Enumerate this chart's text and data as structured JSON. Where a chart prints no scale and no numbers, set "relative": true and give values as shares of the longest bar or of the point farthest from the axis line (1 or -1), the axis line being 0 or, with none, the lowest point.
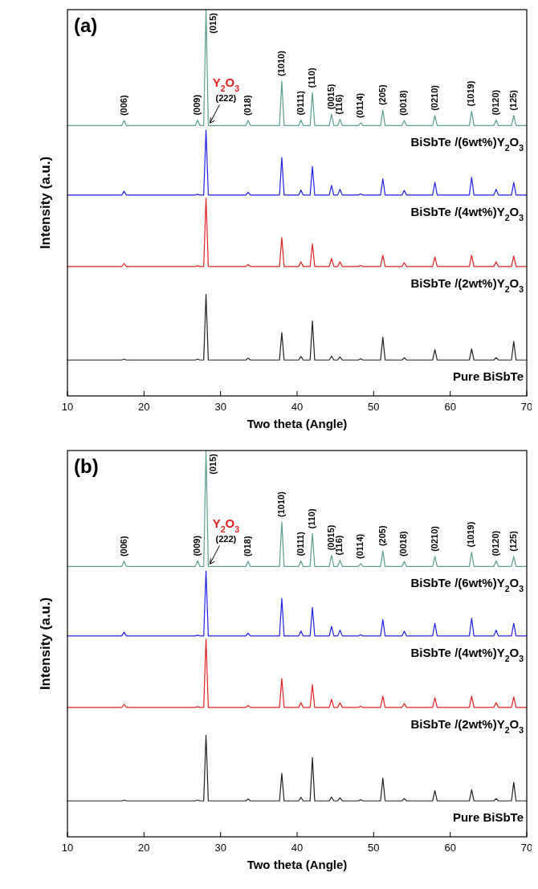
{
  "chart_data": [
    {
      "type": "line",
      "title": "(a)",
      "xlabel": "Two theta (Angle)",
      "ylabel": "Intensity (a.u.)",
      "relative": true,
      "xlim": [
        10,
        70
      ],
      "xticks": [
        10,
        20,
        30,
        40,
        50,
        60,
        70
      ],
      "tick_labels": "x",
      "x": [
        10,
        17.1,
        17.4,
        17.7,
        26.7,
        27.0,
        27.3,
        27.8,
        28.1,
        28.4,
        33.3,
        33.6,
        33.9,
        37.7,
        38.0,
        38.3,
        40.2,
        40.5,
        40.8,
        41.7,
        42.0,
        42.3,
        44.2,
        44.5,
        44.8,
        45.3,
        45.6,
        45.9,
        48.0,
        48.3,
        48.6,
        50.9,
        51.2,
        51.5,
        53.7,
        54.0,
        54.3,
        57.7,
        58.0,
        58.3,
        62.5,
        62.8,
        63.1,
        65.7,
        66.0,
        66.3,
        68.0,
        68.3,
        68.6,
        70
      ],
      "series": [
        {
          "name": "BiSbTe /(6wt%)Y$_{2}$O$_{3}$",
          "color": "#5a9e90",
          "values": [
            0.7,
            0.7,
            0.713,
            0.7,
            0.7,
            0.714,
            0.7,
            0.7,
            1.0,
            0.7,
            0.7,
            0.713,
            0.7,
            0.7,
            0.815,
            0.7,
            0.7,
            0.714,
            0.7,
            0.7,
            0.785,
            0.7,
            0.7,
            0.729,
            0.7,
            0.7,
            0.716,
            0.7,
            0.7,
            0.707,
            0.7,
            0.7,
            0.74,
            0.7,
            0.7,
            0.713,
            0.7,
            0.7,
            0.726,
            0.7,
            0.7,
            0.737,
            0.7,
            0.7,
            0.714,
            0.7,
            0.7,
            0.726,
            0.7,
            0.7
          ]
        },
        {
          "name": "BiSbTe /(4wt%)Y$_{2}$O$_{3}$",
          "color": "#2020e8",
          "values": [
            0.52,
            0.52,
            0.53,
            0.52,
            0.52,
            0.522,
            0.52,
            0.52,
            0.688,
            0.52,
            0.52,
            0.527,
            0.52,
            0.52,
            0.617,
            0.52,
            0.52,
            0.533,
            0.52,
            0.52,
            0.594,
            0.52,
            0.52,
            0.545,
            0.52,
            0.52,
            0.535,
            0.52,
            0.52,
            0.523,
            0.52,
            0.52,
            0.562,
            0.52,
            0.52,
            0.532,
            0.52,
            0.52,
            0.553,
            0.52,
            0.52,
            0.566,
            0.52,
            0.52,
            0.535,
            0.52,
            0.52,
            0.553,
            0.52,
            0.52
          ]
        },
        {
          "name": "BiSbTe /(2wt%)Y$_{2}$O$_{3}$",
          "color": "#e02020",
          "values": [
            0.335,
            0.335,
            0.343,
            0.335,
            0.335,
            0.337,
            0.335,
            0.335,
            0.512,
            0.335,
            0.335,
            0.34,
            0.335,
            0.335,
            0.41,
            0.335,
            0.335,
            0.347,
            0.335,
            0.335,
            0.394,
            0.335,
            0.335,
            0.356,
            0.335,
            0.335,
            0.347,
            0.335,
            0.335,
            0.338,
            0.335,
            0.335,
            0.364,
            0.335,
            0.335,
            0.345,
            0.335,
            0.335,
            0.36,
            0.335,
            0.335,
            0.364,
            0.335,
            0.335,
            0.347,
            0.335,
            0.335,
            0.362,
            0.335,
            0.335
          ]
        },
        {
          "name": "Pure BiSbTe",
          "color": "#202020",
          "values": [
            0.093,
            0.093,
            0.095,
            0.093,
            0.093,
            0.095,
            0.093,
            0.093,
            0.263,
            0.093,
            0.093,
            0.098,
            0.093,
            0.093,
            0.164,
            0.093,
            0.093,
            0.102,
            0.093,
            0.093,
            0.194,
            0.093,
            0.093,
            0.103,
            0.093,
            0.093,
            0.101,
            0.093,
            0.093,
            0.096,
            0.093,
            0.093,
            0.152,
            0.093,
            0.093,
            0.099,
            0.093,
            0.093,
            0.12,
            0.093,
            0.093,
            0.122,
            0.093,
            0.093,
            0.099,
            0.093,
            0.093,
            0.141,
            0.093,
            0.093
          ]
        }
      ],
      "annotations": [
        {
          "text": "Y$_{2}$O$_{3}$",
          "x": 28.4,
          "y": 0.7
        },
        {
          "text": "(222)",
          "x": 28.4,
          "y": 0.7
        },
        {
          "text": "(006)",
          "x": 17.4,
          "y": 0.713
        },
        {
          "text": "(009)",
          "x": 27.0,
          "y": 0.714
        },
        {
          "text": "(015)",
          "x": 28.1,
          "y": 1.0
        },
        {
          "text": "(018)",
          "x": 33.6,
          "y": 0.713
        },
        {
          "text": "(1010)",
          "x": 38.0,
          "y": 0.815
        },
        {
          "text": "(0111)",
          "x": 40.5,
          "y": 0.714
        },
        {
          "text": "(110)",
          "x": 42.0,
          "y": 0.785
        },
        {
          "text": "(0015)",
          "x": 44.5,
          "y": 0.729
        },
        {
          "text": "(116)",
          "x": 45.6,
          "y": 0.716
        },
        {
          "text": "(0114)",
          "x": 48.3,
          "y": 0.707
        },
        {
          "text": "(205)",
          "x": 51.2,
          "y": 0.74
        },
        {
          "text": "(0018)",
          "x": 54.0,
          "y": 0.713
        },
        {
          "text": "(0210)",
          "x": 58.0,
          "y": 0.726
        },
        {
          "text": "(1019)",
          "x": 62.8,
          "y": 0.737
        },
        {
          "text": "(0120)",
          "x": 66.0,
          "y": 0.714
        },
        {
          "text": "(125)",
          "x": 68.3,
          "y": 0.726
        }
      ]
    },
    {
      "type": "line",
      "title": "(b)",
      "xlabel": "Two theta (Angle)",
      "ylabel": "Intensity (a.u.)",
      "relative": true,
      "xlim": [
        10,
        70
      ],
      "xticks": [
        10,
        20,
        30,
        40,
        50,
        60,
        70
      ],
      "tick_labels": "x",
      "x": [
        10,
        17.1,
        17.4,
        17.7,
        26.7,
        27.0,
        27.3,
        27.8,
        28.1,
        28.4,
        33.3,
        33.6,
        33.9,
        37.7,
        38.0,
        38.3,
        40.2,
        40.5,
        40.8,
        41.7,
        42.0,
        42.3,
        44.2,
        44.5,
        44.8,
        45.3,
        45.6,
        45.9,
        48.0,
        48.3,
        48.6,
        50.9,
        51.2,
        51.5,
        53.7,
        54.0,
        54.3,
        57.7,
        58.0,
        58.3,
        62.5,
        62.8,
        63.1,
        65.7,
        66.0,
        66.3,
        68.0,
        68.3,
        68.6,
        70
      ],
      "series": [
        {
          "name": "BiSbTe /(6wt%)Y$_{2}$O$_{3}$",
          "color": "#5a9e90",
          "values": [
            0.7,
            0.7,
            0.713,
            0.7,
            0.7,
            0.714,
            0.7,
            0.7,
            1.0,
            0.7,
            0.7,
            0.713,
            0.7,
            0.7,
            0.815,
            0.7,
            0.7,
            0.714,
            0.7,
            0.7,
            0.785,
            0.7,
            0.7,
            0.729,
            0.7,
            0.7,
            0.716,
            0.7,
            0.7,
            0.707,
            0.7,
            0.7,
            0.74,
            0.7,
            0.7,
            0.713,
            0.7,
            0.7,
            0.726,
            0.7,
            0.7,
            0.737,
            0.7,
            0.7,
            0.714,
            0.7,
            0.7,
            0.726,
            0.7,
            0.7
          ]
        },
        {
          "name": "BiSbTe /(4wt%)Y$_{2}$O$_{3}$",
          "color": "#2020e8",
          "values": [
            0.52,
            0.52,
            0.53,
            0.52,
            0.52,
            0.522,
            0.52,
            0.52,
            0.688,
            0.52,
            0.52,
            0.527,
            0.52,
            0.52,
            0.617,
            0.52,
            0.52,
            0.533,
            0.52,
            0.52,
            0.594,
            0.52,
            0.52,
            0.545,
            0.52,
            0.52,
            0.535,
            0.52,
            0.52,
            0.523,
            0.52,
            0.52,
            0.562,
            0.52,
            0.52,
            0.532,
            0.52,
            0.52,
            0.553,
            0.52,
            0.52,
            0.566,
            0.52,
            0.52,
            0.535,
            0.52,
            0.52,
            0.553,
            0.52,
            0.52
          ]
        },
        {
          "name": "BiSbTe /(2wt%)Y$_{2}$O$_{3}$",
          "color": "#e02020",
          "values": [
            0.335,
            0.335,
            0.343,
            0.335,
            0.335,
            0.337,
            0.335,
            0.335,
            0.512,
            0.335,
            0.335,
            0.34,
            0.335,
            0.335,
            0.41,
            0.335,
            0.335,
            0.347,
            0.335,
            0.335,
            0.394,
            0.335,
            0.335,
            0.356,
            0.335,
            0.335,
            0.347,
            0.335,
            0.335,
            0.338,
            0.335,
            0.335,
            0.364,
            0.335,
            0.335,
            0.345,
            0.335,
            0.335,
            0.36,
            0.335,
            0.335,
            0.364,
            0.335,
            0.335,
            0.347,
            0.335,
            0.335,
            0.362,
            0.335,
            0.335
          ]
        },
        {
          "name": "Pure BiSbTe",
          "color": "#202020",
          "values": [
            0.093,
            0.093,
            0.095,
            0.093,
            0.093,
            0.095,
            0.093,
            0.093,
            0.263,
            0.093,
            0.093,
            0.098,
            0.093,
            0.093,
            0.164,
            0.093,
            0.093,
            0.102,
            0.093,
            0.093,
            0.205,
            0.093,
            0.093,
            0.103,
            0.093,
            0.093,
            0.101,
            0.093,
            0.093,
            0.096,
            0.093,
            0.093,
            0.152,
            0.093,
            0.093,
            0.099,
            0.093,
            0.093,
            0.12,
            0.093,
            0.093,
            0.122,
            0.093,
            0.093,
            0.099,
            0.093,
            0.093,
            0.141,
            0.093,
            0.093
          ]
        }
      ],
      "annotations": [
        {
          "text": "Y$_{2}$O$_{3}$",
          "x": 28.4,
          "y": 0.7
        },
        {
          "text": "(222)",
          "x": 28.4,
          "y": 0.7
        },
        {
          "text": "(006)",
          "x": 17.4,
          "y": 0.713
        },
        {
          "text": "(009)",
          "x": 27.0,
          "y": 0.714
        },
        {
          "text": "(015)",
          "x": 28.1,
          "y": 1.0
        },
        {
          "text": "(018)",
          "x": 33.6,
          "y": 0.713
        },
        {
          "text": "(1010)",
          "x": 38.0,
          "y": 0.815
        },
        {
          "text": "(0111)",
          "x": 40.5,
          "y": 0.714
        },
        {
          "text": "(110)",
          "x": 42.0,
          "y": 0.785
        },
        {
          "text": "(0015)",
          "x": 44.5,
          "y": 0.729
        },
        {
          "text": "(116)",
          "x": 45.6,
          "y": 0.716
        },
        {
          "text": "(0114)",
          "x": 48.3,
          "y": 0.707
        },
        {
          "text": "(205)",
          "x": 51.2,
          "y": 0.74
        },
        {
          "text": "(0018)",
          "x": 54.0,
          "y": 0.713
        },
        {
          "text": "(0210)",
          "x": 58.0,
          "y": 0.726
        },
        {
          "text": "(1019)",
          "x": 62.8,
          "y": 0.737
        },
        {
          "text": "(0120)",
          "x": 66.0,
          "y": 0.714
        },
        {
          "text": "(125)",
          "x": 68.3,
          "y": 0.726
        }
      ]
    }
  ]
}
